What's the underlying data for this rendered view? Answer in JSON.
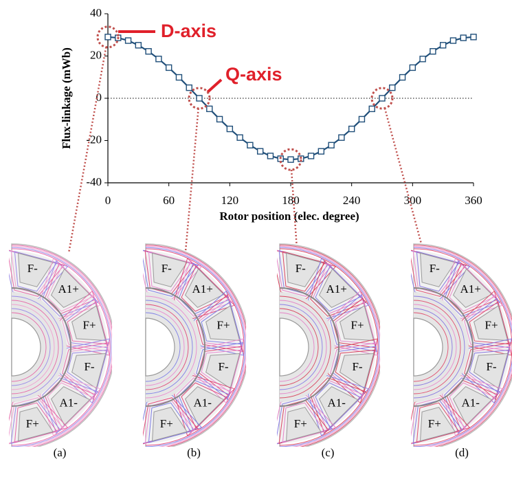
{
  "chart_data": {
    "type": "line",
    "x": [
      0,
      10,
      20,
      30,
      40,
      50,
      60,
      70,
      80,
      90,
      100,
      110,
      120,
      130,
      140,
      150,
      160,
      170,
      180,
      190,
      200,
      210,
      220,
      230,
      240,
      250,
      260,
      270,
      280,
      290,
      300,
      310,
      320,
      330,
      340,
      350,
      360
    ],
    "series": [
      {
        "color": "#1f4e79",
        "values": [
          29,
          28.6,
          27.3,
          25.1,
          22.2,
          18.6,
          14.5,
          9.9,
          5.0,
          0,
          -5.0,
          -9.9,
          -14.5,
          -18.6,
          -22.2,
          -25.1,
          -27.3,
          -28.6,
          -29,
          -28.6,
          -27.3,
          -25.1,
          -22.2,
          -18.6,
          -14.5,
          -9.9,
          -5.0,
          0,
          5.0,
          9.9,
          14.5,
          18.6,
          22.2,
          25.1,
          27.3,
          28.6,
          29
        ]
      }
    ],
    "xlabel": "Rotor position (elec. degree)",
    "ylabel": "Flux-linkage (mWb)",
    "xlim": [
      0,
      360
    ],
    "xticks": [
      0,
      60,
      120,
      180,
      240,
      300,
      360
    ],
    "ylim": [
      -40,
      40
    ],
    "yticks": [
      -40,
      -20,
      0,
      20,
      40
    ],
    "annotations": [
      "D-axis",
      "Q-axis"
    ]
  },
  "panels": [
    {
      "label": "(a)",
      "slots": [
        "F-",
        "A1+",
        "F+",
        "F-",
        "A1-",
        "F+"
      ]
    },
    {
      "label": "(b)",
      "slots": [
        "F-",
        "A1+",
        "F+",
        "F-",
        "A1-",
        "F+"
      ]
    },
    {
      "label": "(c)",
      "slots": [
        "F-",
        "A1+",
        "F+",
        "F-",
        "A1-",
        "F+"
      ]
    },
    {
      "label": "(d)",
      "slots": [
        "F-",
        "A1+",
        "F+",
        "F-",
        "A1-",
        "F+"
      ]
    }
  ]
}
